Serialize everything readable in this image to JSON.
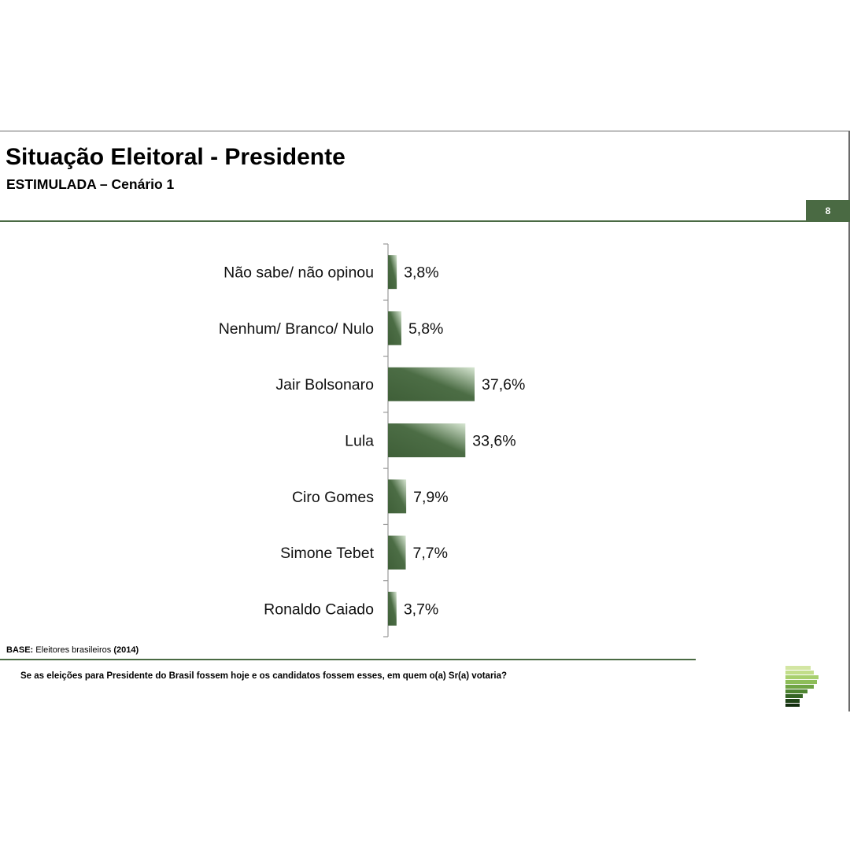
{
  "header": {
    "title": "Situação Eleitoral - Presidente",
    "subtitle": "ESTIMULADA – Cenário 1",
    "page_number": "8"
  },
  "colors": {
    "accent": "#4a6a43",
    "bar_dark": "#3f5f38",
    "bar_light": "#d7e6d2"
  },
  "chart_data": {
    "type": "bar",
    "orientation": "horizontal",
    "categories": [
      "Não sabe/ não opinou",
      "Nenhum/ Branco/ Nulo",
      "Jair Bolsonaro",
      "Lula",
      "Ciro Gomes",
      "Simone Tebet",
      "Ronaldo Caiado"
    ],
    "values": [
      3.8,
      5.8,
      37.6,
      33.6,
      7.9,
      7.7,
      3.7
    ],
    "value_labels": [
      "3,8%",
      "5,8%",
      "37,6%",
      "33,6%",
      "7,9%",
      "7,7%",
      "3,7%"
    ],
    "title": "",
    "xlabel": "",
    "ylabel": "",
    "grid": false,
    "legend": "none"
  },
  "footer": {
    "base_label": "BASE:",
    "base_text": "Eleitores brasileiros",
    "base_year": "(2014)",
    "question": "Se as eleições para Presidente do Brasil fossem hoje e os candidatos fossem esses, em quem o(a) Sr(a) votaria?"
  },
  "logo": {
    "icon": "stacked-bars-logo"
  }
}
